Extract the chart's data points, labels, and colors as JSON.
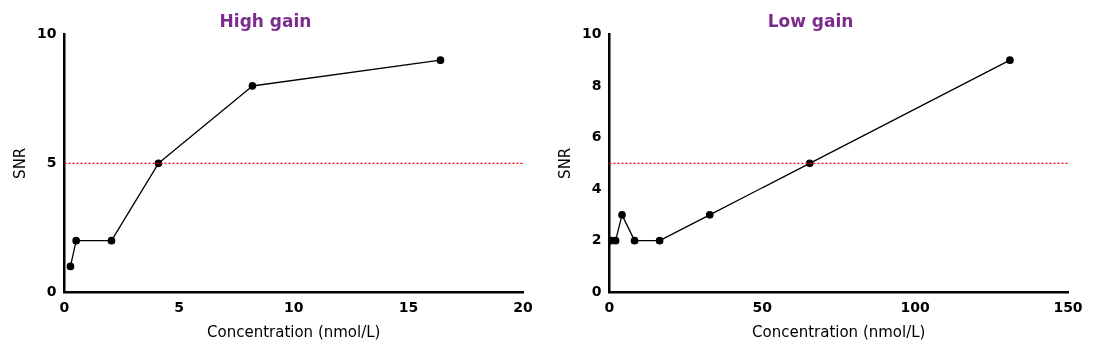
{
  "chart_data": [
    {
      "type": "line",
      "title": "High gain",
      "xlabel": "Concentration (nmol/L)",
      "ylabel": "SNR",
      "x": [
        0.26,
        0.51,
        2.05,
        4.1,
        8.2,
        16.4
      ],
      "series": [
        {
          "color": "#000000",
          "values": [
            1,
            2,
            2,
            5,
            8,
            9
          ]
        }
      ],
      "xlim": [
        0,
        20
      ],
      "xticks": [
        0,
        5,
        10,
        15,
        20
      ],
      "ylim": [
        0,
        10
      ],
      "yticks": [
        0,
        5,
        10
      ],
      "grid": false,
      "legend": false,
      "marker": "circle",
      "line_style": "solid",
      "ref_lines": [
        {
          "axis": "y",
          "value": 5,
          "color": "#ff0000",
          "line_style": "dotted"
        }
      ]
    },
    {
      "type": "line",
      "title": "Low gain",
      "xlabel": "Concentration (nmol/L)",
      "ylabel": "SNR",
      "x": [
        0.5,
        2,
        4.1,
        8.2,
        16.4,
        32.8,
        65.5,
        131
      ],
      "series": [
        {
          "color": "#000000",
          "values": [
            2,
            2,
            3,
            2,
            2,
            3,
            5,
            9
          ]
        }
      ],
      "xlim": [
        0,
        150
      ],
      "xticks": [
        0,
        50,
        100,
        150
      ],
      "ylim": [
        0,
        10
      ],
      "yticks": [
        0,
        2,
        4,
        6,
        8,
        10
      ],
      "grid": false,
      "legend": false,
      "marker": "circle",
      "line_style": "solid",
      "ref_lines": [
        {
          "axis": "y",
          "value": 5,
          "color": "#ff0000",
          "line_style": "dotted"
        }
      ]
    }
  ]
}
